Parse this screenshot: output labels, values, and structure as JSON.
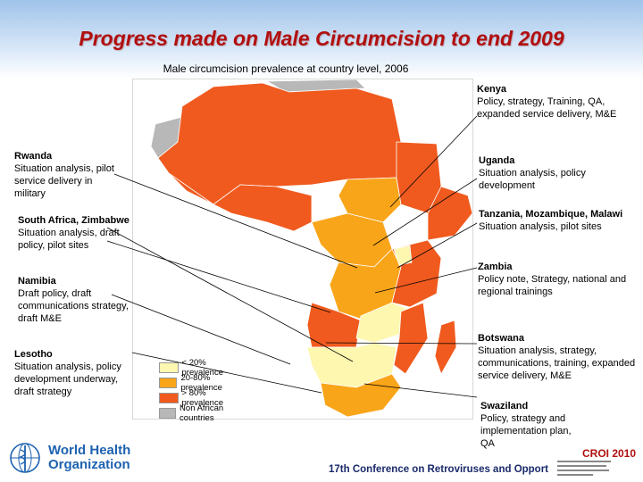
{
  "header": {
    "title": "Progress made on Male Circumcision to end 2009",
    "subtitle": "Male circumcision prevalence at country level, 2006"
  },
  "annotations": [
    {
      "id": "kenya",
      "name": "Kenya",
      "description": "Policy, strategy, Training, QA, expanded service delivery, M&E"
    },
    {
      "id": "rwanda",
      "name": "Rwanda",
      "description": "Situation analysis, pilot service delivery in military"
    },
    {
      "id": "uganda",
      "name": "Uganda",
      "description": "Situation analysis, policy development"
    },
    {
      "id": "south-africa-zimbabwe",
      "name": "South Africa, Zimbabwe",
      "description": "Situation analysis, draft policy, pilot sites"
    },
    {
      "id": "tanzania-mozambique-malawi",
      "name": "Tanzania, Mozambique, Malawi",
      "description": "Situation analysis, pilot sites"
    },
    {
      "id": "zambia",
      "name": "Zambia",
      "description": "Policy note, Strategy, national and regional trainings"
    },
    {
      "id": "namibia",
      "name": "Namibia",
      "description": "Draft policy, draft communications strategy, draft M&E"
    },
    {
      "id": "botswana",
      "name": "Botswana",
      "description": "Situation analysis, strategy, communications, training, expanded service delivery, M&E"
    },
    {
      "id": "lesotho",
      "name": "Lesotho",
      "description": "Situation analysis, policy development underway, draft strategy"
    },
    {
      "id": "swaziland",
      "name": "Swaziland",
      "description": "Policy, strategy and implementation plan, QA"
    }
  ],
  "legend": {
    "items": [
      {
        "label": "< 20% prevalence",
        "color": "#fdf7b0"
      },
      {
        "label": "20-80% prevalence",
        "color": "#f9a51a"
      },
      {
        "label": "> 80% prevalence",
        "color": "#f05a1e"
      },
      {
        "label": "Non African countries",
        "color": "#b8b8b8"
      }
    ]
  },
  "colors": {
    "high": "#f05a1e",
    "medium": "#f9a51a",
    "low": "#fdf7b0",
    "non_african": "#b8b8b8",
    "ocean": "#ffffff",
    "title": "#b10f0f"
  },
  "footer": {
    "who_line1": "World Health",
    "who_line2": "Organization",
    "conference": "17th Conference on Retroviruses and Opport",
    "croi_tag": "CROI 2010"
  }
}
